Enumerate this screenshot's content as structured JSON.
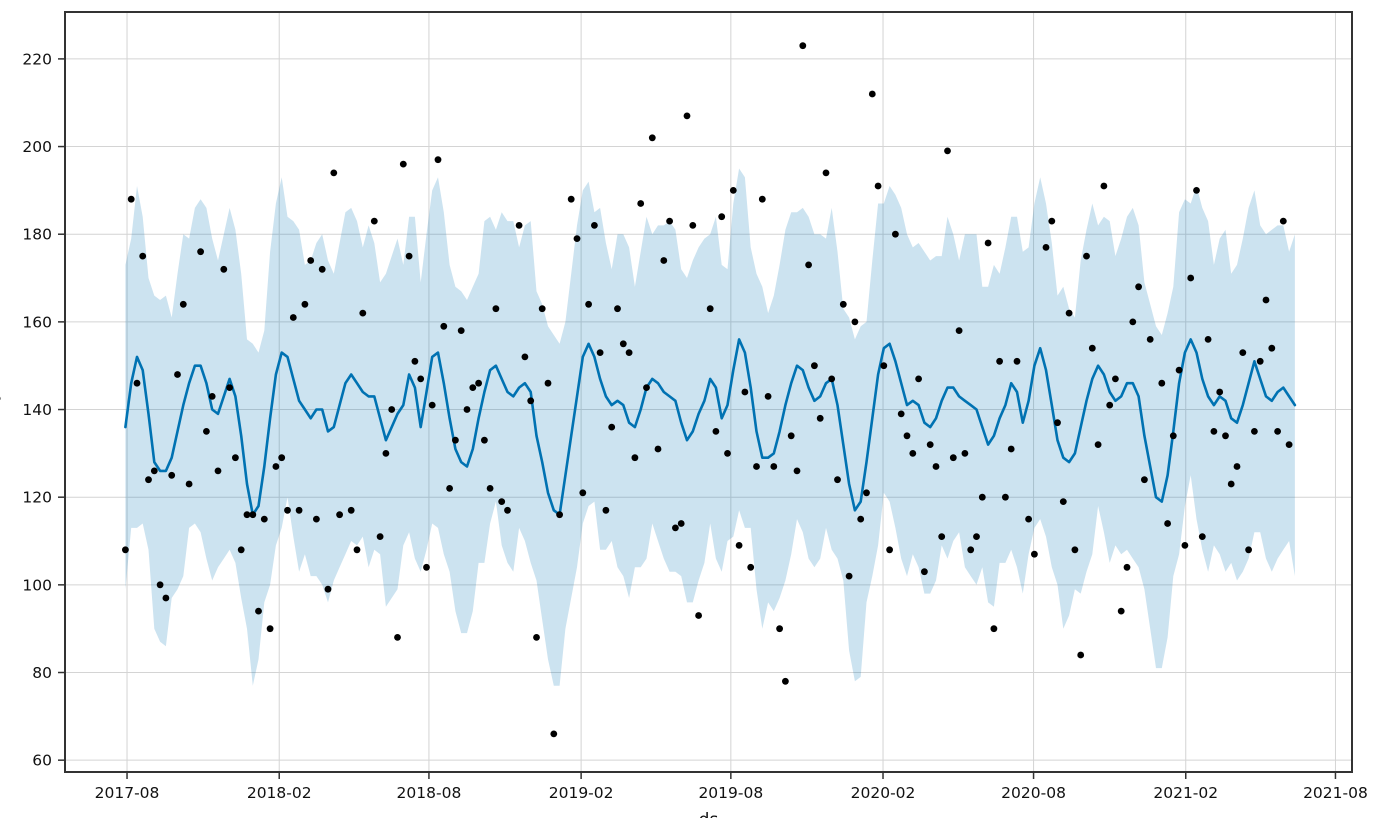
{
  "figure": {
    "background": "#ffffff",
    "title": ""
  },
  "axes": {
    "xlabel": "ds",
    "ylabel": "y",
    "xlabel_clipped": true,
    "ylabel_clipped": true
  },
  "chart_data": {
    "type": "line",
    "title": "",
    "xlabel": "ds",
    "ylabel": "y",
    "grid": true,
    "legend_position": "none",
    "xlim": [
      "2017-05-18",
      "2021-08-21"
    ],
    "ylim": [
      57.3,
      230.7
    ],
    "xticks": [
      {
        "label": "2017-08",
        "date": "2017-08-01"
      },
      {
        "label": "2018-02",
        "date": "2018-02-01"
      },
      {
        "label": "2018-08",
        "date": "2018-08-01"
      },
      {
        "label": "2019-02",
        "date": "2019-02-01"
      },
      {
        "label": "2019-08",
        "date": "2019-08-01"
      },
      {
        "label": "2020-02",
        "date": "2020-02-01"
      },
      {
        "label": "2020-08",
        "date": "2020-08-01"
      },
      {
        "label": "2021-02",
        "date": "2021-02-01"
      },
      {
        "label": "2021-08",
        "date": "2021-08-01"
      }
    ],
    "yticks": [
      60,
      80,
      100,
      120,
      140,
      160,
      180,
      200,
      220
    ],
    "x_start_date": "2017-07-30",
    "x_step_days": 7,
    "series": [
      {
        "name": "observations",
        "style": "scatter",
        "marker_radius": 3.4,
        "values": [
          108,
          188,
          146,
          175,
          124,
          126,
          100,
          97,
          125,
          148,
          164,
          123,
          null,
          176,
          135,
          143,
          126,
          172,
          145,
          129,
          108,
          116,
          116,
          94,
          115,
          90,
          127,
          129,
          117,
          161,
          117,
          164,
          174,
          115,
          172,
          99,
          194,
          116,
          null,
          117,
          108,
          162,
          null,
          183,
          111,
          130,
          140,
          88,
          196,
          175,
          151,
          147,
          104,
          141,
          197,
          159,
          122,
          133,
          158,
          140,
          145,
          146,
          133,
          122,
          163,
          119,
          117,
          null,
          182,
          152,
          142,
          88,
          163,
          146,
          66,
          116,
          null,
          188,
          179,
          121,
          164,
          182,
          153,
          117,
          136,
          163,
          155,
          153,
          129,
          187,
          145,
          202,
          131,
          174,
          183,
          113,
          114,
          207,
          182,
          93,
          null,
          163,
          135,
          184,
          130,
          190,
          109,
          144,
          104,
          127,
          188,
          143,
          127,
          90,
          78,
          134,
          126,
          223,
          173,
          150,
          138,
          194,
          147,
          124,
          164,
          102,
          160,
          115,
          121,
          212,
          191,
          150,
          108,
          180,
          139,
          134,
          130,
          147,
          103,
          132,
          127,
          111,
          199,
          129,
          158,
          130,
          108,
          111,
          120,
          178,
          90,
          151,
          120,
          131,
          151,
          null,
          115,
          107,
          null,
          177,
          183,
          137,
          119,
          162,
          108,
          84,
          175,
          154,
          132,
          191,
          141,
          147,
          94,
          104,
          160,
          168,
          124,
          156,
          null,
          146,
          114,
          134,
          149,
          109,
          170,
          190,
          111,
          156,
          135,
          144,
          134,
          123,
          127,
          153,
          108,
          135,
          151,
          165,
          154,
          135,
          183,
          132,
          null
        ]
      },
      {
        "name": "yhat",
        "style": "line",
        "line_width": 2.6,
        "values": [
          136,
          146,
          152,
          149,
          139,
          128,
          126,
          126,
          129,
          135,
          141,
          146,
          150,
          150,
          146,
          140,
          139,
          143,
          147,
          143,
          134,
          123,
          116,
          118,
          127,
          138,
          148,
          153,
          152,
          147,
          142,
          140,
          138,
          140,
          140,
          135,
          136,
          141,
          146,
          148,
          146,
          144,
          143,
          143,
          138,
          133,
          136,
          139,
          141,
          148,
          145,
          136,
          144,
          152,
          153,
          146,
          138,
          131,
          128,
          127,
          131,
          138,
          144,
          149,
          150,
          147,
          144,
          143,
          145,
          146,
          144,
          134,
          128,
          121,
          117,
          116,
          125,
          134,
          143,
          152,
          155,
          152,
          147,
          143,
          141,
          142,
          141,
          137,
          136,
          140,
          145,
          147,
          146,
          144,
          143,
          142,
          137,
          133,
          135,
          139,
          142,
          147,
          145,
          138,
          141,
          149,
          156,
          153,
          145,
          135,
          129,
          129,
          130,
          135,
          141,
          146,
          150,
          149,
          145,
          142,
          143,
          146,
          147,
          141,
          132,
          123,
          117,
          119,
          128,
          138,
          148,
          154,
          155,
          151,
          146,
          141,
          142,
          141,
          137,
          136,
          138,
          142,
          145,
          145,
          143,
          142,
          141,
          140,
          136,
          132,
          134,
          138,
          141,
          146,
          144,
          137,
          142,
          150,
          154,
          149,
          141,
          133,
          129,
          128,
          130,
          136,
          142,
          147,
          150,
          148,
          144,
          142,
          143,
          146,
          146,
          143,
          134,
          127,
          120,
          119,
          125,
          135,
          146,
          153,
          156,
          153,
          147,
          143,
          141,
          143,
          142,
          138,
          137,
          141,
          146,
          151,
          147,
          143,
          142,
          144,
          145,
          143,
          141
        ]
      },
      {
        "name": "uncertainty_interval",
        "style": "band",
        "around": "yhat",
        "halfwidth_cycle": [
          37,
          33,
          39,
          35,
          31,
          38,
          39,
          40,
          32,
          36,
          39,
          33,
          36,
          38,
          40,
          39,
          35,
          37,
          39,
          38
        ]
      }
    ],
    "colors": {
      "line": "#0072B2",
      "band": "#0072B2",
      "band_opacity": 0.2,
      "dots": "#000000",
      "grid": "#d4d4d4",
      "spine": "#333333",
      "tick_label": "#111111"
    }
  }
}
